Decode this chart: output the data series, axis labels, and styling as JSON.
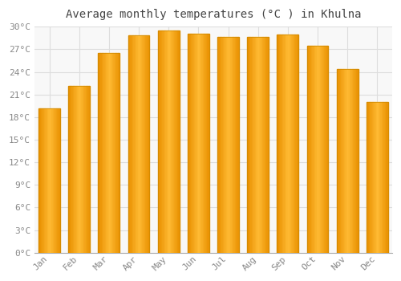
{
  "title": "Average monthly temperatures (°C ) in Khulna",
  "months": [
    "Jan",
    "Feb",
    "Mar",
    "Apr",
    "May",
    "Jun",
    "Jul",
    "Aug",
    "Sep",
    "Oct",
    "Nov",
    "Dec"
  ],
  "values": [
    19.2,
    22.1,
    26.5,
    28.9,
    29.5,
    29.1,
    28.6,
    28.6,
    29.0,
    27.5,
    24.4,
    20.0
  ],
  "bar_color_center": "#FFB733",
  "bar_color_edge": "#E89000",
  "background_color": "#FFFFFF",
  "plot_bg_color": "#F8F8F8",
  "grid_color": "#DDDDDD",
  "title_fontsize": 10,
  "tick_label_fontsize": 8,
  "ytick_step": 3,
  "ymax": 30,
  "ymin": 0,
  "title_color": "#444444",
  "tick_color": "#888888"
}
